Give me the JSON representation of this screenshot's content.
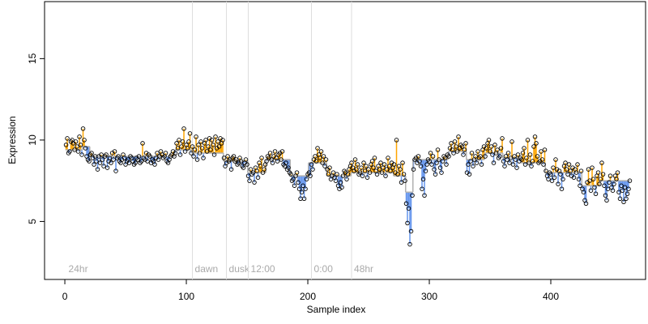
{
  "chart_data": {
    "type": "scatter-fit",
    "xlabel": "Sample index",
    "ylabel": "Expression",
    "xlim": [
      -16.7,
      478
    ],
    "ylim": [
      1.44,
      18.5
    ],
    "xticks": [
      0,
      100,
      200,
      300,
      400
    ],
    "yticks": [
      5,
      10,
      15
    ],
    "above_color": "#ffa500",
    "below_color": "#6495ed",
    "fit_color": "#b0b0b0",
    "point_color": "#000000",
    "annotation_color": "#dddddd",
    "annotations": [
      {
        "x": 1,
        "label": "24hr",
        "line": false
      },
      {
        "x": 105,
        "label": "dawn",
        "line": true
      },
      {
        "x": 133,
        "label": "dusk",
        "line": true
      },
      {
        "x": 151,
        "label": "12:00",
        "line": true
      },
      {
        "x": 203,
        "label": "0:00",
        "line": true
      },
      {
        "x": 236,
        "label": "48hr",
        "line": true
      }
    ],
    "fit": [
      {
        "start": 1,
        "end": 14,
        "value": 9.4
      },
      {
        "start": 15,
        "end": 20,
        "value": 9.6
      },
      {
        "start": 21,
        "end": 90,
        "value": 9.0
      },
      {
        "start": 91,
        "end": 104,
        "value": 9.4
      },
      {
        "start": 105,
        "end": 130,
        "value": 9.2
      },
      {
        "start": 131,
        "end": 150,
        "value": 8.7
      },
      {
        "start": 151,
        "end": 165,
        "value": 8.0
      },
      {
        "start": 166,
        "end": 185,
        "value": 8.8
      },
      {
        "start": 186,
        "end": 200,
        "value": 7.8
      },
      {
        "start": 201,
        "end": 215,
        "value": 8.6
      },
      {
        "start": 216,
        "end": 235,
        "value": 7.8
      },
      {
        "start": 236,
        "end": 270,
        "value": 8.0
      },
      {
        "start": 271,
        "end": 280,
        "value": 7.8
      },
      {
        "start": 281,
        "end": 286,
        "value": 6.8
      },
      {
        "start": 287,
        "end": 315,
        "value": 8.8
      },
      {
        "start": 316,
        "end": 330,
        "value": 9.3
      },
      {
        "start": 331,
        "end": 345,
        "value": 8.8
      },
      {
        "start": 346,
        "end": 360,
        "value": 9.2
      },
      {
        "start": 361,
        "end": 375,
        "value": 8.9
      },
      {
        "start": 376,
        "end": 395,
        "value": 8.6
      },
      {
        "start": 396,
        "end": 410,
        "value": 8.0
      },
      {
        "start": 411,
        "end": 425,
        "value": 8.0
      },
      {
        "start": 426,
        "end": 440,
        "value": 7.2
      },
      {
        "start": 441,
        "end": 465,
        "value": 7.5
      }
    ],
    "x": [
      1,
      2,
      3,
      4,
      5,
      6,
      7,
      8,
      9,
      10,
      11,
      12,
      13,
      14,
      15,
      16,
      17,
      18,
      19,
      20,
      21,
      22,
      23,
      24,
      25,
      26,
      27,
      28,
      29,
      30,
      31,
      32,
      33,
      34,
      35,
      36,
      37,
      38,
      39,
      40,
      41,
      42,
      43,
      44,
      45,
      46,
      47,
      48,
      49,
      50,
      51,
      52,
      53,
      54,
      55,
      56,
      57,
      58,
      59,
      60,
      61,
      62,
      63,
      64,
      65,
      66,
      67,
      68,
      69,
      70,
      71,
      72,
      73,
      74,
      75,
      76,
      77,
      78,
      79,
      80,
      81,
      82,
      83,
      84,
      85,
      86,
      87,
      88,
      89,
      90,
      91,
      92,
      93,
      94,
      95,
      96,
      97,
      98,
      99,
      100,
      101,
      102,
      103,
      104,
      105,
      106,
      107,
      108,
      109,
      110,
      111,
      112,
      113,
      114,
      115,
      116,
      117,
      118,
      119,
      120,
      121,
      122,
      123,
      124,
      125,
      126,
      127,
      128,
      129,
      130,
      131,
      132,
      133,
      134,
      135,
      136,
      137,
      138,
      139,
      140,
      141,
      142,
      143,
      144,
      145,
      146,
      147,
      148,
      149,
      150,
      151,
      152,
      153,
      154,
      155,
      156,
      157,
      158,
      159,
      160,
      161,
      162,
      163,
      164,
      165,
      166,
      167,
      168,
      169,
      170,
      171,
      172,
      173,
      174,
      175,
      176,
      177,
      178,
      179,
      180,
      181,
      182,
      183,
      184,
      185,
      186,
      187,
      188,
      189,
      190,
      191,
      192,
      193,
      194,
      195,
      196,
      197,
      198,
      199,
      200,
      201,
      202,
      203,
      204,
      205,
      206,
      207,
      208,
      209,
      210,
      211,
      212,
      213,
      214,
      215,
      216,
      217,
      218,
      219,
      220,
      221,
      222,
      223,
      224,
      225,
      226,
      227,
      228,
      229,
      230,
      231,
      232,
      233,
      234,
      235,
      236,
      237,
      238,
      239,
      240,
      241,
      242,
      243,
      244,
      245,
      246,
      247,
      248,
      249,
      250,
      251,
      252,
      253,
      254,
      255,
      256,
      257,
      258,
      259,
      260,
      261,
      262,
      263,
      264,
      265,
      266,
      267,
      268,
      269,
      270,
      271,
      272,
      273,
      274,
      275,
      276,
      277,
      278,
      279,
      280,
      281,
      282,
      283,
      284,
      285,
      286,
      287,
      288,
      289,
      290,
      291,
      292,
      293,
      294,
      295,
      296,
      297,
      298,
      299,
      300,
      301,
      302,
      303,
      304,
      305,
      306,
      307,
      308,
      309,
      310,
      311,
      312,
      313,
      314,
      315,
      316,
      317,
      318,
      319,
      320,
      321,
      322,
      323,
      324,
      325,
      326,
      327,
      328,
      329,
      330,
      331,
      332,
      333,
      334,
      335,
      336,
      337,
      338,
      339,
      340,
      341,
      342,
      343,
      344,
      345,
      346,
      347,
      348,
      349,
      350,
      351,
      352,
      353,
      354,
      355,
      356,
      357,
      358,
      359,
      360,
      361,
      362,
      363,
      364,
      365,
      366,
      367,
      368,
      369,
      370,
      371,
      372,
      373,
      374,
      375,
      376,
      377,
      378,
      379,
      380,
      381,
      382,
      383,
      384,
      385,
      386,
      387,
      388,
      389,
      390,
      391,
      392,
      393,
      394,
      395,
      396,
      397,
      398,
      399,
      400,
      401,
      402,
      403,
      404,
      405,
      406,
      407,
      408,
      409,
      410,
      411,
      412,
      413,
      414,
      415,
      416,
      417,
      418,
      419,
      420,
      421,
      422,
      423,
      424,
      425,
      426,
      427,
      428,
      429,
      430,
      431,
      432,
      433,
      434,
      435,
      436,
      437,
      438,
      439,
      440,
      441,
      442,
      443,
      444,
      445,
      446,
      447,
      448,
      449,
      450,
      451,
      452,
      453,
      454,
      455,
      456,
      457,
      458,
      459,
      460,
      461,
      462,
      463,
      464,
      465
    ],
    "values": [
      9.7,
      10.1,
      9.2,
      9.3,
      9.9,
      10.0,
      9.8,
      9.4,
      9.9,
      9.6,
      9.3,
      10.2,
      9.7,
      9.1,
      10.7,
      10.0,
      9.5,
      9.0,
      8.8,
      8.7,
      9.1,
      9.2,
      8.9,
      8.5,
      9.0,
      8.7,
      8.2,
      9.0,
      8.6,
      9.1,
      8.8,
      8.4,
      9.0,
      9.1,
      8.3,
      8.7,
      8.9,
      8.6,
      9.2,
      8.8,
      9.3,
      8.1,
      8.9,
      9.0,
      8.7,
      8.6,
      8.8,
      9.1,
      8.9,
      8.5,
      8.7,
      8.8,
      8.6,
      9.0,
      8.9,
      8.7,
      8.5,
      8.6,
      8.9,
      8.8,
      9.0,
      8.6,
      8.7,
      9.8,
      8.9,
      8.8,
      9.2,
      8.7,
      9.1,
      9.0,
      8.6,
      8.8,
      8.7,
      8.5,
      8.9,
      9.2,
      8.8,
      9.0,
      9.3,
      9.1,
      8.9,
      9.0,
      9.2,
      8.7,
      8.6,
      8.8,
      9.0,
      9.1,
      9.3,
      9.0,
      9.2,
      9.8,
      9.5,
      10.0,
      9.1,
      9.6,
      9.9,
      10.7,
      9.3,
      9.7,
      9.5,
      9.9,
      10.4,
      9.2,
      9.6,
      9.0,
      9.4,
      10.2,
      8.8,
      9.7,
      9.2,
      9.9,
      9.5,
      8.9,
      9.8,
      10.0,
      9.3,
      9.6,
      10.1,
      9.4,
      10.0,
      9.7,
      9.1,
      10.2,
      9.5,
      9.9,
      9.6,
      10.1,
      9.8,
      10.0,
      8.9,
      8.4,
      8.6,
      9.0,
      8.7,
      8.8,
      8.2,
      8.9,
      9.0,
      8.7,
      8.8,
      8.5,
      8.6,
      8.9,
      8.7,
      8.4,
      8.3,
      8.6,
      8.8,
      8.5,
      7.8,
      7.5,
      8.2,
      7.9,
      8.0,
      7.4,
      8.3,
      8.1,
      7.7,
      8.6,
      8.4,
      8.9,
      8.0,
      8.2,
      8.5,
      8.7,
      9.0,
      8.9,
      9.2,
      8.8,
      8.6,
      9.0,
      9.3,
      8.9,
      8.7,
      9.1,
      9.2,
      8.8,
      9.3,
      8.5,
      8.4,
      8.6,
      8.2,
      8.3,
      8.0,
      7.9,
      7.5,
      7.6,
      7.2,
      7.8,
      8.0,
      7.4,
      7.0,
      6.4,
      6.8,
      7.2,
      6.4,
      7.0,
      7.6,
      7.9,
      8.0,
      7.8,
      8.5,
      8.2,
      8.8,
      9.0,
      8.7,
      9.5,
      9.1,
      8.9,
      9.3,
      8.6,
      9.0,
      8.4,
      8.8,
      8.2,
      7.9,
      8.3,
      7.6,
      7.8,
      8.0,
      7.7,
      7.5,
      7.9,
      7.2,
      7.0,
      7.4,
      7.1,
      7.8,
      8.1,
      8.0,
      7.6,
      7.9,
      8.2,
      8.4,
      8.6,
      8.3,
      8.1,
      8.8,
      8.2,
      8.5,
      7.9,
      8.0,
      8.3,
      7.8,
      8.6,
      8.1,
      8.4,
      7.7,
      8.2,
      8.0,
      8.5,
      8.7,
      8.3,
      8.9,
      8.1,
      7.9,
      8.4,
      8.2,
      8.6,
      8.0,
      8.3,
      8.5,
      7.8,
      8.2,
      8.9,
      8.4,
      8.1,
      8.6,
      8.3,
      8.5,
      8.0,
      10.0,
      7.9,
      8.4,
      8.2,
      7.4,
      8.6,
      7.9,
      7.5,
      6.1,
      4.9,
      5.8,
      3.6,
      4.4,
      6.6,
      8.2,
      8.8,
      8.9,
      8.6,
      9.0,
      8.7,
      8.4,
      7.0,
      7.6,
      6.6,
      8.1,
      8.5,
      8.8,
      8.7,
      9.2,
      8.5,
      9.0,
      8.2,
      7.9,
      8.6,
      9.4,
      8.8,
      8.3,
      8.0,
      8.7,
      9.0,
      8.9,
      8.5,
      9.1,
      9.0,
      9.5,
      9.8,
      9.4,
      9.2,
      9.9,
      9.6,
      9.3,
      10.2,
      9.5,
      9.7,
      9.6,
      9.1,
      9.4,
      9.8,
      8.0,
      8.5,
      7.9,
      8.7,
      9.2,
      8.4,
      8.8,
      9.0,
      8.6,
      9.3,
      8.9,
      9.0,
      8.5,
      9.4,
      9.6,
      9.0,
      9.5,
      9.8,
      10.0,
      9.3,
      9.6,
      9.1,
      8.6,
      9.7,
      9.2,
      9.4,
      8.9,
      9.0,
      9.5,
      10.1,
      8.7,
      8.4,
      9.0,
      8.8,
      9.2,
      8.6,
      8.9,
      9.9,
      8.5,
      9.0,
      8.8,
      8.3,
      9.1,
      8.7,
      8.9,
      8.8,
      9.2,
      9.5,
      8.5,
      8.9,
      10.0,
      8.6,
      9.1,
      8.4,
      8.7,
      9.6,
      10.2,
      9.8,
      9.0,
      8.6,
      8.7,
      9.3,
      8.8,
      8.5,
      9.4,
      8.1,
      7.8,
      7.6,
      8.0,
      7.9,
      7.5,
      8.3,
      7.7,
      8.8,
      8.2,
      7.3,
      8.1,
      7.9,
      7.0,
      7.6,
      8.4,
      8.6,
      8.2,
      7.9,
      8.5,
      8.1,
      7.8,
      8.3,
      7.7,
      8.2,
      8.0,
      8.5,
      7.6,
      7.2,
      8.1,
      7.0,
      6.8,
      6.3,
      6.1,
      7.4,
      8.2,
      7.5,
      6.9,
      8.3,
      7.6,
      7.1,
      6.7,
      7.8,
      8.0,
      7.3,
      7.6,
      8.6,
      7.9,
      7.2,
      6.6,
      6.3,
      7.0,
      7.4,
      7.8,
      7.1,
      6.9,
      7.3,
      7.8,
      7.6,
      8.0,
      6.8,
      6.4,
      7.2,
      6.9,
      6.2,
      7.1,
      6.4,
      6.7,
      7.0,
      7.5
    ]
  }
}
